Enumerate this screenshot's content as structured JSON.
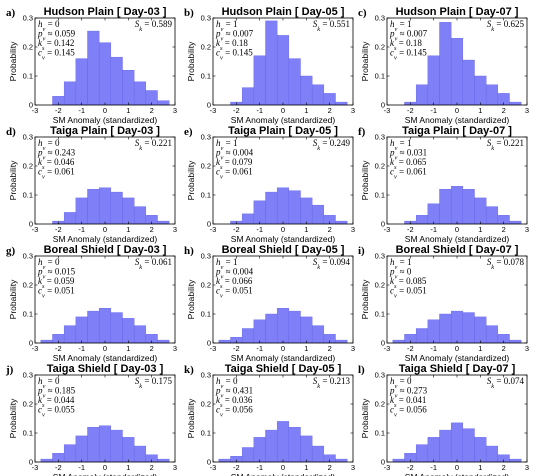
{
  "figure": {
    "bar_color": "#7f7ff7",
    "bar_edge_color": "#6464e6",
    "xlabel": "SM Anomaly (standardized)",
    "ylabel": "Probability",
    "xlim": [
      -3,
      3
    ],
    "xticks": [
      "-3",
      "-2",
      "-1",
      "0",
      "1",
      "2",
      "3"
    ],
    "ylim": [
      0,
      0.3
    ],
    "yticks": [
      "0",
      "0.1",
      "0.2",
      "0.3"
    ]
  },
  "chart_data": [
    {
      "type": "bar",
      "panel": "a)",
      "title": "Hudson Plain [ Day-03 ]",
      "sk": "S_k = 0.589",
      "stats": [
        "h_v = 0",
        "p_v ≈ 0.059",
        "k_s = 0.142",
        "c_v = 0.145"
      ],
      "bin_edges": [
        -2.25,
        -1.75,
        -1.25,
        -0.75,
        -0.25,
        0.25,
        0.75,
        1.25,
        1.75,
        2.25,
        2.75
      ],
      "values": [
        0.03,
        0.08,
        0.16,
        0.255,
        0.215,
        0.165,
        0.12,
        0.08,
        0.05,
        0.015
      ]
    },
    {
      "type": "bar",
      "panel": "b)",
      "title": "Hudson Plain [ Day-05 ]",
      "sk": "S_k = 0.551",
      "stats": [
        "h_v = 1",
        "p_v ≈ 0.007",
        "k_s = 0.18",
        "c_v = 0.145"
      ],
      "bin_edges": [
        -2.25,
        -1.75,
        -1.25,
        -0.75,
        -0.25,
        0.25,
        0.75,
        1.25,
        1.75,
        2.25,
        2.75
      ],
      "values": [
        0.01,
        0.06,
        0.17,
        0.29,
        0.24,
        0.16,
        0.1,
        0.07,
        0.04,
        0.01
      ]
    },
    {
      "type": "bar",
      "panel": "c)",
      "title": "Hudson Plain [ Day-07 ]",
      "sk": "S_k = 0.625",
      "stats": [
        "h_v = 1",
        "p_v ≈ 0.007",
        "k_s = 0.18",
        "c_v = 0.145"
      ],
      "bin_edges": [
        -2.25,
        -1.75,
        -1.25,
        -0.75,
        -0.25,
        0.25,
        0.75,
        1.25,
        1.75,
        2.25,
        2.75
      ],
      "values": [
        0.01,
        0.07,
        0.17,
        0.285,
        0.23,
        0.155,
        0.1,
        0.07,
        0.04,
        0.01
      ]
    },
    {
      "type": "bar",
      "panel": "d)",
      "title": "Taiga Plain [ Day-03 ]",
      "sk": "S_k = 0.221",
      "stats": [
        "h_v = 0",
        "p_v ≈ 0.243",
        "k_s = 0.046",
        "c_v = 0.061"
      ],
      "bin_edges": [
        -2.25,
        -1.75,
        -1.25,
        -0.75,
        -0.25,
        0.25,
        0.75,
        1.25,
        1.75,
        2.25,
        2.75
      ],
      "values": [
        0.01,
        0.04,
        0.09,
        0.12,
        0.125,
        0.11,
        0.09,
        0.06,
        0.03,
        0.01
      ]
    },
    {
      "type": "bar",
      "panel": "e)",
      "title": "Taiga Plain [ Day-05 ]",
      "sk": "S_k = 0.249",
      "stats": [
        "h_v = 1",
        "p_v ≈ 0.004",
        "k_s = 0.079",
        "c_v = 0.061"
      ],
      "bin_edges": [
        -2.25,
        -1.75,
        -1.25,
        -0.75,
        -0.25,
        0.25,
        0.75,
        1.25,
        1.75,
        2.25,
        2.75
      ],
      "values": [
        0.01,
        0.035,
        0.08,
        0.11,
        0.125,
        0.115,
        0.09,
        0.065,
        0.03,
        0.01
      ]
    },
    {
      "type": "bar",
      "panel": "f)",
      "title": "Taiga Plain [ Day-07 ]",
      "sk": "S_k = 0.221",
      "stats": [
        "h_v = 1",
        "p_v ≈ 0.031",
        "k_s = 0.065",
        "c_v = 0.061"
      ],
      "bin_edges": [
        -2.25,
        -1.75,
        -1.25,
        -0.75,
        -0.25,
        0.25,
        0.75,
        1.25,
        1.75,
        2.25,
        2.75
      ],
      "values": [
        0.01,
        0.03,
        0.07,
        0.12,
        0.13,
        0.12,
        0.09,
        0.06,
        0.03,
        0.01
      ]
    },
    {
      "type": "bar",
      "panel": "g)",
      "title": "Boreal Shield [ Day-03 ]",
      "sk": "S_k = 0.061",
      "stats": [
        "h_v = 0",
        "p_v ≈ 0.015",
        "k_s = 0.059",
        "c_v = 0.051"
      ],
      "bin_edges": [
        -2.75,
        -2.25,
        -1.75,
        -1.25,
        -0.75,
        -0.25,
        0.25,
        0.75,
        1.25,
        1.75,
        2.25,
        2.75
      ],
      "values": [
        0.01,
        0.03,
        0.06,
        0.09,
        0.11,
        0.12,
        0.105,
        0.085,
        0.06,
        0.03,
        0.01
      ]
    },
    {
      "type": "bar",
      "panel": "h)",
      "title": "Boreal Shield [ Day-05 ]",
      "sk": "S_k = 0.094",
      "stats": [
        "h_v = 1",
        "p_v ≈ 0.004",
        "k_s = 0.066",
        "c_v = 0.051"
      ],
      "bin_edges": [
        -2.75,
        -2.25,
        -1.75,
        -1.25,
        -0.75,
        -0.25,
        0.25,
        0.75,
        1.25,
        1.75,
        2.25,
        2.75
      ],
      "values": [
        0.01,
        0.02,
        0.05,
        0.08,
        0.1,
        0.12,
        0.11,
        0.09,
        0.06,
        0.03,
        0.01
      ]
    },
    {
      "type": "bar",
      "panel": "i)",
      "title": "Boreal Shield [ Day-07 ]",
      "sk": "S_k = 0.078",
      "stats": [
        "h_v = 1",
        "p_v ≈ 0",
        "k_s = 0.085",
        "c_v = 0.051"
      ],
      "bin_edges": [
        -2.75,
        -2.25,
        -1.75,
        -1.25,
        -0.75,
        -0.25,
        0.25,
        0.75,
        1.25,
        1.75,
        2.25,
        2.75
      ],
      "values": [
        0.01,
        0.03,
        0.05,
        0.08,
        0.1,
        0.11,
        0.105,
        0.09,
        0.06,
        0.03,
        0.01
      ]
    },
    {
      "type": "bar",
      "panel": "j)",
      "title": "Taiga Shield [ Day-03 ]",
      "sk": "S_k = 0.175",
      "stats": [
        "h_v = 0",
        "p_v ≈ 0.185",
        "k_s = 0.044",
        "c_v = 0.055"
      ],
      "bin_edges": [
        -2.75,
        -2.25,
        -1.75,
        -1.25,
        -0.75,
        -0.25,
        0.25,
        0.75,
        1.25,
        1.75,
        2.25,
        2.75
      ],
      "values": [
        0.01,
        0.03,
        0.06,
        0.09,
        0.12,
        0.125,
        0.11,
        0.085,
        0.055,
        0.025,
        0.01
      ]
    },
    {
      "type": "bar",
      "panel": "k)",
      "title": "Taiga Shield [ Day-05 ]",
      "sk": "S_k = 0.213",
      "stats": [
        "h_v = 0",
        "p_v ≈ 0.431",
        "k_s = 0.036",
        "c_v = 0.056"
      ],
      "bin_edges": [
        -2.75,
        -2.25,
        -1.75,
        -1.25,
        -0.75,
        -0.25,
        0.25,
        0.75,
        1.25,
        1.75,
        2.25,
        2.75
      ],
      "values": [
        0.01,
        0.02,
        0.05,
        0.085,
        0.11,
        0.14,
        0.12,
        0.09,
        0.055,
        0.025,
        0.01
      ]
    },
    {
      "type": "bar",
      "panel": "l)",
      "title": "Taiga Shield [ Day-07 ]",
      "sk": "S_k = 0.074",
      "stats": [
        "h_v = 0",
        "p_v ≈ 0.273",
        "k_s = 0.041",
        "c_v = 0.056"
      ],
      "bin_edges": [
        -2.75,
        -2.25,
        -1.75,
        -1.25,
        -0.75,
        -0.25,
        0.25,
        0.75,
        1.25,
        1.75,
        2.25,
        2.75
      ],
      "values": [
        0.01,
        0.03,
        0.06,
        0.085,
        0.11,
        0.135,
        0.115,
        0.085,
        0.055,
        0.025,
        0.01
      ]
    }
  ]
}
